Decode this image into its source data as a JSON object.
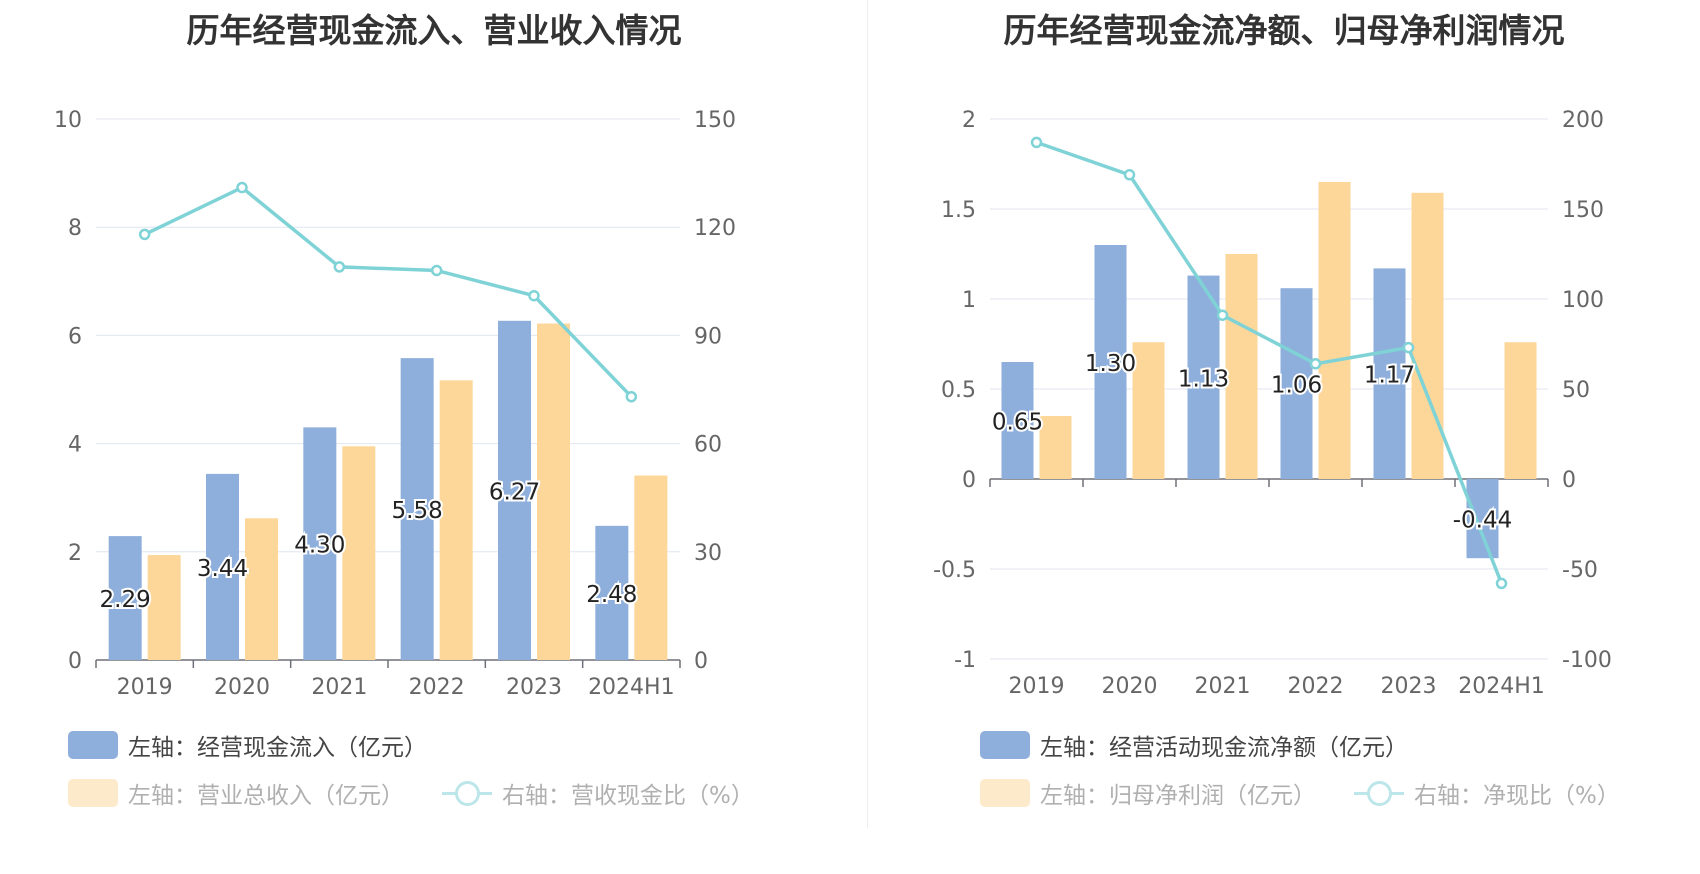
{
  "colors": {
    "blue": "#8eaedb",
    "orange": "#fdd79a",
    "line": "#7fd3d6",
    "orange_light": "#fdeacb"
  },
  "left_panel": {
    "title": "历年经营现金流入、营业收入情况",
    "legend": {
      "series1": "左轴：经营现金流入（亿元）",
      "series2": "左轴：营业总收入（亿元）",
      "series3": "右轴：营收现金比（%）"
    }
  },
  "right_panel": {
    "title": "历年经营现金流净额、归母净利润情况",
    "legend": {
      "series1": "左轴：经营活动现金流净额（亿元）",
      "series2": "左轴：归母净利润（亿元）",
      "series3": "右轴：净现比（%）"
    }
  },
  "chart_data": [
    {
      "type": "bar",
      "title": "历年经营现金流入、营业收入情况",
      "categories": [
        "2019",
        "2020",
        "2021",
        "2022",
        "2023",
        "2024H1"
      ],
      "left_axis": {
        "ylim": [
          0,
          10
        ],
        "ticks": [
          "0",
          "2",
          "4",
          "6",
          "8",
          "10"
        ]
      },
      "right_axis": {
        "ylim": [
          0,
          150
        ],
        "ticks": [
          "0",
          "30",
          "60",
          "90",
          "120",
          "150"
        ]
      },
      "grid": true,
      "legend_position": "bottom",
      "series": [
        {
          "name": "左轴：经营现金流入（亿元）",
          "type": "bar",
          "axis": "left",
          "values": [
            2.29,
            3.44,
            4.3,
            5.58,
            6.27,
            2.48
          ],
          "labels": [
            "2.29",
            "3.44",
            "4.30",
            "5.58",
            "6.27",
            "2.48"
          ]
        },
        {
          "name": "左轴：营业总收入（亿元）",
          "type": "bar",
          "axis": "left",
          "values": [
            1.94,
            2.62,
            3.95,
            5.17,
            6.22,
            3.41
          ]
        },
        {
          "name": "右轴：营收现金比（%）",
          "type": "line",
          "axis": "right",
          "values": [
            118,
            131,
            109,
            108,
            101,
            73
          ]
        }
      ]
    },
    {
      "type": "bar",
      "title": "历年经营现金流净额、归母净利润情况",
      "categories": [
        "2019",
        "2020",
        "2021",
        "2022",
        "2023",
        "2024H1"
      ],
      "left_axis": {
        "ylim": [
          -1,
          2
        ],
        "ticks": [
          "-1",
          "-0.5",
          "0",
          "0.5",
          "1",
          "1.5",
          "2"
        ]
      },
      "right_axis": {
        "ylim": [
          -100,
          200
        ],
        "ticks": [
          "-100",
          "-50",
          "0",
          "50",
          "100",
          "150",
          "200"
        ]
      },
      "grid": true,
      "legend_position": "bottom",
      "series": [
        {
          "name": "左轴：经营活动现金流净额（亿元）",
          "type": "bar",
          "axis": "left",
          "values": [
            0.65,
            1.3,
            1.13,
            1.06,
            1.17,
            -0.44
          ],
          "labels": [
            "0.65",
            "1.30",
            "1.13",
            "1.06",
            "1.17",
            "-0.44"
          ]
        },
        {
          "name": "左轴：归母净利润（亿元）",
          "type": "bar",
          "axis": "left",
          "values": [
            0.35,
            0.76,
            1.25,
            1.65,
            1.59,
            0.76
          ]
        },
        {
          "name": "右轴：净现比（%）",
          "type": "line",
          "axis": "right",
          "values": [
            187,
            169,
            91,
            64,
            73,
            -58
          ]
        }
      ]
    }
  ]
}
